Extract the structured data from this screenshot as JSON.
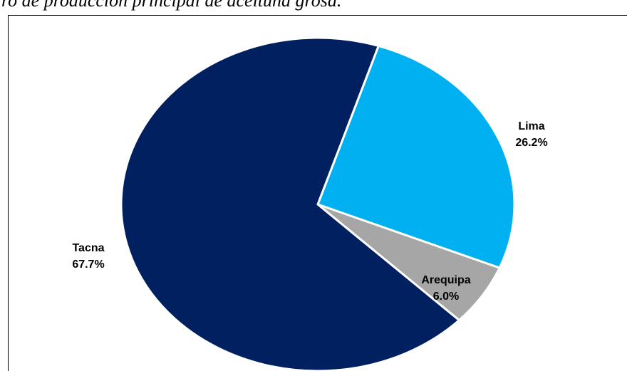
{
  "caption": "ro de producción principal de aceituna grosa.",
  "chart_data": {
    "type": "pie",
    "title": "",
    "slices": [
      {
        "label": "Lima",
        "value": 26.2,
        "display": "26.2%",
        "color": "#00b0f0"
      },
      {
        "label": "Arequipa",
        "value": 6.0,
        "display": "6.0%",
        "color": "#a6a6a6"
      },
      {
        "label": "Tacna",
        "value": 67.7,
        "display": "67.7%",
        "color": "#002060"
      }
    ],
    "legend": "none",
    "start_angle_deg": 72
  }
}
